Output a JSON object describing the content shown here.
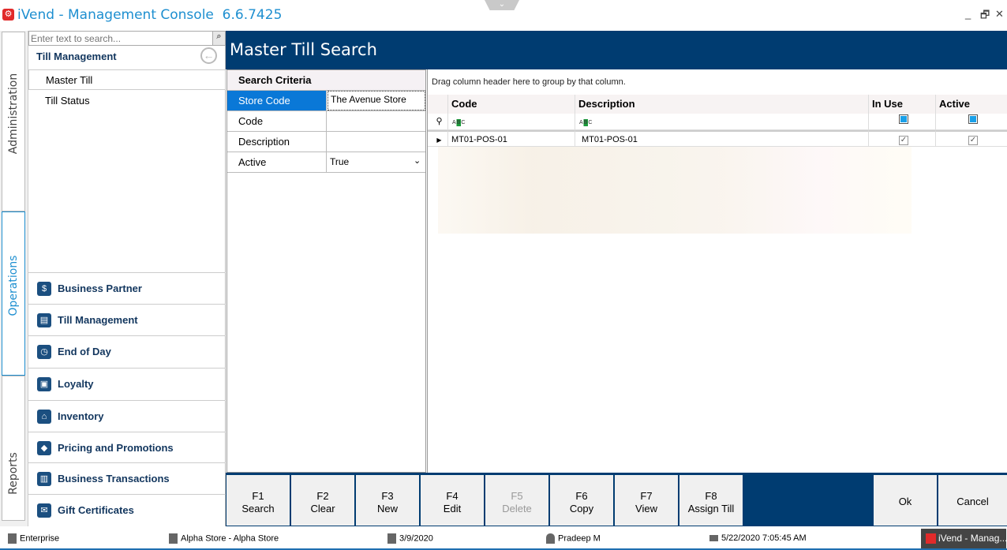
{
  "window": {
    "title": "iVend - Management Console  6.6.7425",
    "minimize": "_",
    "restore": "🗗",
    "close": "✕"
  },
  "vtabs": [
    "Administration",
    "Operations",
    "Reports"
  ],
  "left": {
    "search_placeholder": "Enter text to search...",
    "section_title": "Till Management",
    "subitems": [
      "Master Till",
      "Till Status"
    ],
    "nav": [
      {
        "label": "Business Partner",
        "icon": "business-partner-icon"
      },
      {
        "label": "Till Management",
        "icon": "till-icon"
      },
      {
        "label": "End of Day",
        "icon": "clock-icon"
      },
      {
        "label": "Loyalty",
        "icon": "gift-icon"
      },
      {
        "label": "Inventory",
        "icon": "warehouse-icon"
      },
      {
        "label": "Pricing and Promotions",
        "icon": "tag-icon"
      },
      {
        "label": "Business Transactions",
        "icon": "transactions-icon"
      },
      {
        "label": "Gift Certificates",
        "icon": "gift-certificate-icon"
      }
    ]
  },
  "header": {
    "title": "Master Till Search"
  },
  "criteria": {
    "title": "Search Criteria",
    "rows": [
      {
        "label": "Store Code",
        "value": "The Avenue Store"
      },
      {
        "label": "Code",
        "value": ""
      },
      {
        "label": "Description",
        "value": ""
      },
      {
        "label": "Active",
        "value": "True"
      }
    ]
  },
  "grid": {
    "group_hint": "Drag column header here to group by that column.",
    "columns": [
      "Code",
      "Description",
      "In Use",
      "Active"
    ],
    "filter_abc": "ABC",
    "rows": [
      {
        "code": "MT01-POS-01",
        "description": "MT01-POS-01",
        "in_use": true,
        "active": true
      }
    ]
  },
  "fkeys": [
    {
      "key": "F1",
      "label": "Search",
      "enabled": true
    },
    {
      "key": "F2",
      "label": "Clear",
      "enabled": true
    },
    {
      "key": "F3",
      "label": "New",
      "enabled": true
    },
    {
      "key": "F4",
      "label": "Edit",
      "enabled": true
    },
    {
      "key": "F5",
      "label": "Delete",
      "enabled": false
    },
    {
      "key": "F6",
      "label": "Copy",
      "enabled": true
    },
    {
      "key": "F7",
      "label": "View",
      "enabled": true
    },
    {
      "key": "F8",
      "label": "Assign Till",
      "enabled": true
    }
  ],
  "actions": {
    "ok": "Ok",
    "cancel": "Cancel"
  },
  "status": {
    "enterprise": "Enterprise",
    "store": "Alpha Store - Alpha Store",
    "date": "3/9/2020",
    "user": "Pradeep M",
    "login": "5/22/2020 7:05:45 AM",
    "taskbar": "iVend - Manag..."
  },
  "colors": {
    "header": "#003c71",
    "selected": "#0a78d7",
    "title": "#1e8fd0"
  }
}
